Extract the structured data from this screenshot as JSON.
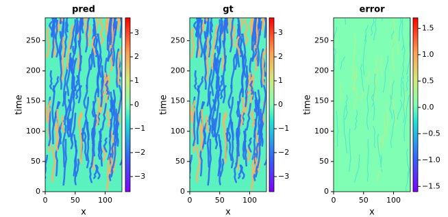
{
  "chart_data": [
    {
      "type": "heatmap",
      "title": "pred",
      "xlabel": "x",
      "ylabel": "time",
      "colormap": "rainbow",
      "xlim": [
        0,
        128
      ],
      "xticks": [
        0,
        50,
        100
      ],
      "ylim": [
        0,
        288
      ],
      "yticks": [
        0,
        50,
        100,
        150,
        200,
        250
      ],
      "clim": [
        -3.63,
        3.63
      ],
      "cticks": [
        {
          "value": -3,
          "label": "−3"
        },
        {
          "value": -2,
          "label": "−2"
        },
        {
          "value": -1,
          "label": "−1"
        },
        0,
        1,
        2,
        3
      ]
    },
    {
      "type": "heatmap",
      "title": "gt",
      "xlabel": "x",
      "ylabel": "time",
      "colormap": "rainbow",
      "xlim": [
        0,
        128
      ],
      "xticks": [
        0,
        50,
        100
      ],
      "ylim": [
        0,
        288
      ],
      "yticks": [
        0,
        50,
        100,
        150,
        200,
        250
      ],
      "clim": [
        -3.63,
        3.63
      ],
      "cticks": [
        {
          "value": -3,
          "label": "−3"
        },
        {
          "value": -2,
          "label": "−2"
        },
        {
          "value": -1,
          "label": "−1"
        },
        0,
        1,
        2,
        3
      ]
    },
    {
      "type": "heatmap",
      "title": "error",
      "xlabel": "x",
      "ylabel": "time",
      "colormap": "rainbow",
      "xlim": [
        0,
        128
      ],
      "xticks": [
        0,
        50,
        100
      ],
      "ylim": [
        0,
        288
      ],
      "yticks": [
        0,
        50,
        100,
        150,
        200,
        250
      ],
      "clim": [
        -1.6,
        1.7
      ],
      "cticks": [
        {
          "value": -1.5,
          "label": "−1.5"
        },
        {
          "value": -1,
          "label": "−1.0"
        },
        {
          "value": -0.5,
          "label": "−0.5"
        },
        {
          "value": 0,
          "label": "0.0"
        },
        {
          "value": 0.5,
          "label": "0.5"
        },
        {
          "value": 1,
          "label": "1.0"
        },
        {
          "value": 1.5,
          "label": "1.5"
        }
      ]
    }
  ]
}
